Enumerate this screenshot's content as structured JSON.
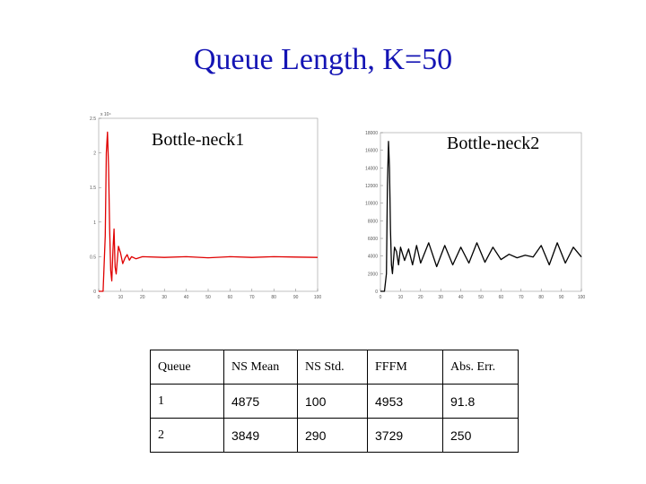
{
  "title": "Queue Length, K=50",
  "chart_data": [
    {
      "type": "line",
      "title": "Bottle-neck1",
      "color": "#e00000",
      "xlim": [
        0,
        100
      ],
      "ylim": [
        0,
        25000
      ],
      "exponent_label": "x 10⁴",
      "x_ticks": [
        "0",
        "10",
        "20",
        "30",
        "40",
        "50",
        "60",
        "70",
        "80",
        "90",
        "100"
      ],
      "y_ticks": [
        "0",
        "0.5",
        "1",
        "1.5",
        "2",
        "2.5"
      ],
      "series": [
        {
          "x": [
            0,
            1,
            2,
            3,
            3.5,
            4,
            4.5,
            5,
            5.5,
            6,
            6.5,
            7,
            7.5,
            8,
            9,
            10,
            11,
            12,
            13,
            14,
            15,
            17,
            20,
            30,
            40,
            50,
            60,
            70,
            80,
            90,
            100
          ],
          "values": [
            0,
            0,
            0,
            8000,
            20000,
            23000,
            18000,
            9000,
            3000,
            1500,
            6000,
            9000,
            3500,
            2500,
            6500,
            5500,
            4000,
            4800,
            5300,
            4500,
            5000,
            4700,
            5000,
            4900,
            5000,
            4850,
            5000,
            4900,
            5000,
            4950,
            4900
          ]
        }
      ]
    },
    {
      "type": "line",
      "title": "Bottle-neck2",
      "color": "#000000",
      "xlim": [
        0,
        100
      ],
      "ylim": [
        0,
        18000
      ],
      "x_ticks": [
        "0",
        "10",
        "20",
        "30",
        "40",
        "50",
        "60",
        "70",
        "80",
        "90",
        "100"
      ],
      "y_ticks": [
        "0",
        "2000",
        "4000",
        "6000",
        "8000",
        "10000",
        "12000",
        "14000",
        "16000",
        "18000"
      ],
      "series": [
        {
          "x": [
            0,
            1,
            2,
            3,
            3.5,
            4,
            4.5,
            5,
            5.5,
            6,
            7,
            8,
            9,
            10,
            12,
            14,
            16,
            18,
            20,
            24,
            28,
            32,
            36,
            40,
            44,
            48,
            52,
            56,
            60,
            64,
            68,
            72,
            76,
            80,
            84,
            88,
            92,
            96,
            100
          ],
          "values": [
            0,
            0,
            0,
            2000,
            12000,
            17000,
            14000,
            7000,
            3000,
            2000,
            5000,
            4500,
            3000,
            5000,
            3500,
            4800,
            3000,
            5200,
            3200,
            5500,
            2800,
            5200,
            3000,
            5000,
            3200,
            5500,
            3300,
            5000,
            3600,
            4200,
            3800,
            4100,
            3900,
            5200,
            3000,
            5500,
            3200,
            5000,
            3900
          ]
        }
      ]
    }
  ],
  "table": {
    "rows": [
      [
        "Queue",
        "NS Mean",
        "NS Std.",
        "FFFM",
        "Abs. Err."
      ],
      [
        "1",
        "4875",
        "100",
        "4953",
        "91.8"
      ],
      [
        "2",
        "3849",
        "290",
        "3729",
        "250"
      ]
    ]
  }
}
